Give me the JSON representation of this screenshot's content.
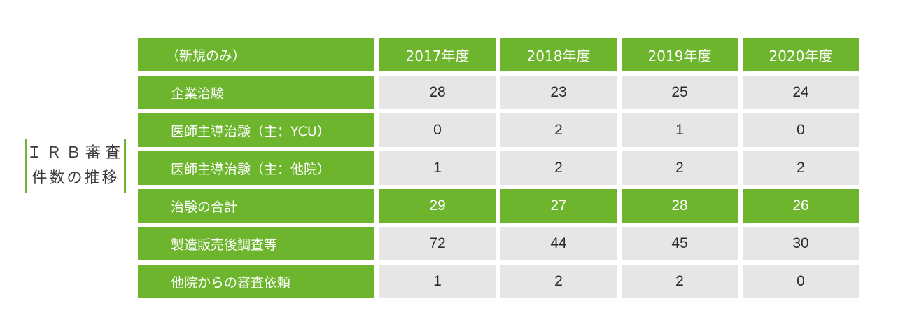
{
  "side_label": {
    "line1": "ＩＲＢ審査",
    "line2": "件数の推移"
  },
  "table": {
    "corner": "（新規のみ）",
    "years": [
      "2017年度",
      "2018年度",
      "2019年度",
      "2020年度"
    ],
    "rows": [
      {
        "label": "企業治験",
        "values": [
          "28",
          "23",
          "25",
          "24"
        ]
      },
      {
        "label": "医師主導治験（主：YCU）",
        "values": [
          "0",
          "2",
          "1",
          "0"
        ]
      },
      {
        "label": "医師主導治験（主：他院）",
        "values": [
          "1",
          "2",
          "2",
          "2"
        ]
      },
      {
        "label": "治験の合計",
        "values": [
          "29",
          "27",
          "28",
          "26"
        ]
      },
      {
        "label": "製造販売後調査等",
        "values": [
          "72",
          "44",
          "45",
          "30"
        ]
      },
      {
        "label": "他院からの審査依頼",
        "values": [
          "1",
          "2",
          "2",
          "0"
        ]
      }
    ]
  },
  "colors": {
    "accent_green": "#6cb52d",
    "cell_gray": "#e6e6e6"
  }
}
